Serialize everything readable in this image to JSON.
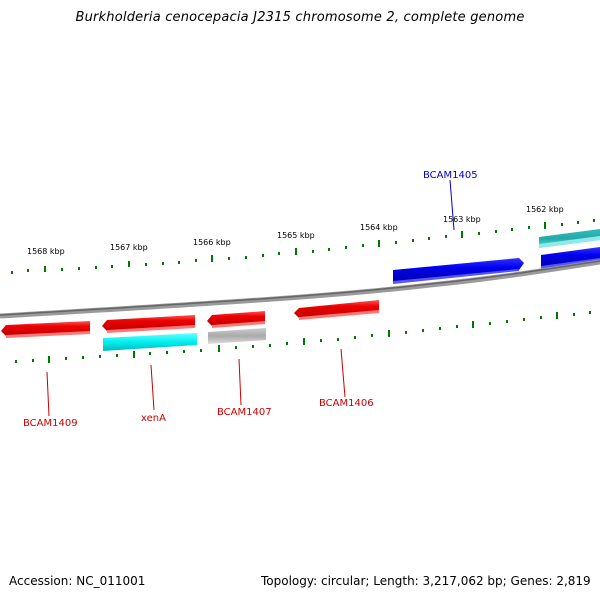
{
  "title": "Burkholderia cenocepacia J2315 chromosome 2, complete genome",
  "footer": {
    "accession_label": "Accession:",
    "accession_value": "NC_011001",
    "topology_label": "Topology:",
    "topology_value": "circular",
    "length_label": "Length:",
    "length_value": "3,217,062 bp",
    "genes_label": "Genes:",
    "genes_value": "2,819"
  },
  "scale": {
    "tick_labels": [
      "1568 kbp",
      "1567 kbp",
      "1566 kbp",
      "1565 kbp",
      "1564 kbp",
      "1563 kbp",
      "1562 kbp"
    ]
  },
  "genes": [
    {
      "label": "BCAM1405",
      "color": "#0000cc",
      "label_color": "#0000cc",
      "strand": "forward"
    },
    {
      "label": "BCAM1406",
      "color": "#cc0000",
      "label_color": "#cc0000",
      "strand": "reverse"
    },
    {
      "label": "BCAM1407",
      "color": "#cc0000",
      "label_color": "#cc0000",
      "strand": "reverse"
    },
    {
      "label": "xenA",
      "color": "#cc0000",
      "label_color": "#cc0000",
      "strand": "reverse"
    },
    {
      "label": "BCAM1409",
      "color": "#cc0000",
      "label_color": "#cc0000",
      "strand": "reverse"
    }
  ],
  "colors": {
    "forward_gene": "#0000ee",
    "reverse_gene": "#ee0000",
    "cds_forward": "#22bbbb",
    "cds_reverse": "#00eeee",
    "other_feature": "#aaaaaa",
    "backbone": "#888888",
    "tick": "#007700"
  }
}
